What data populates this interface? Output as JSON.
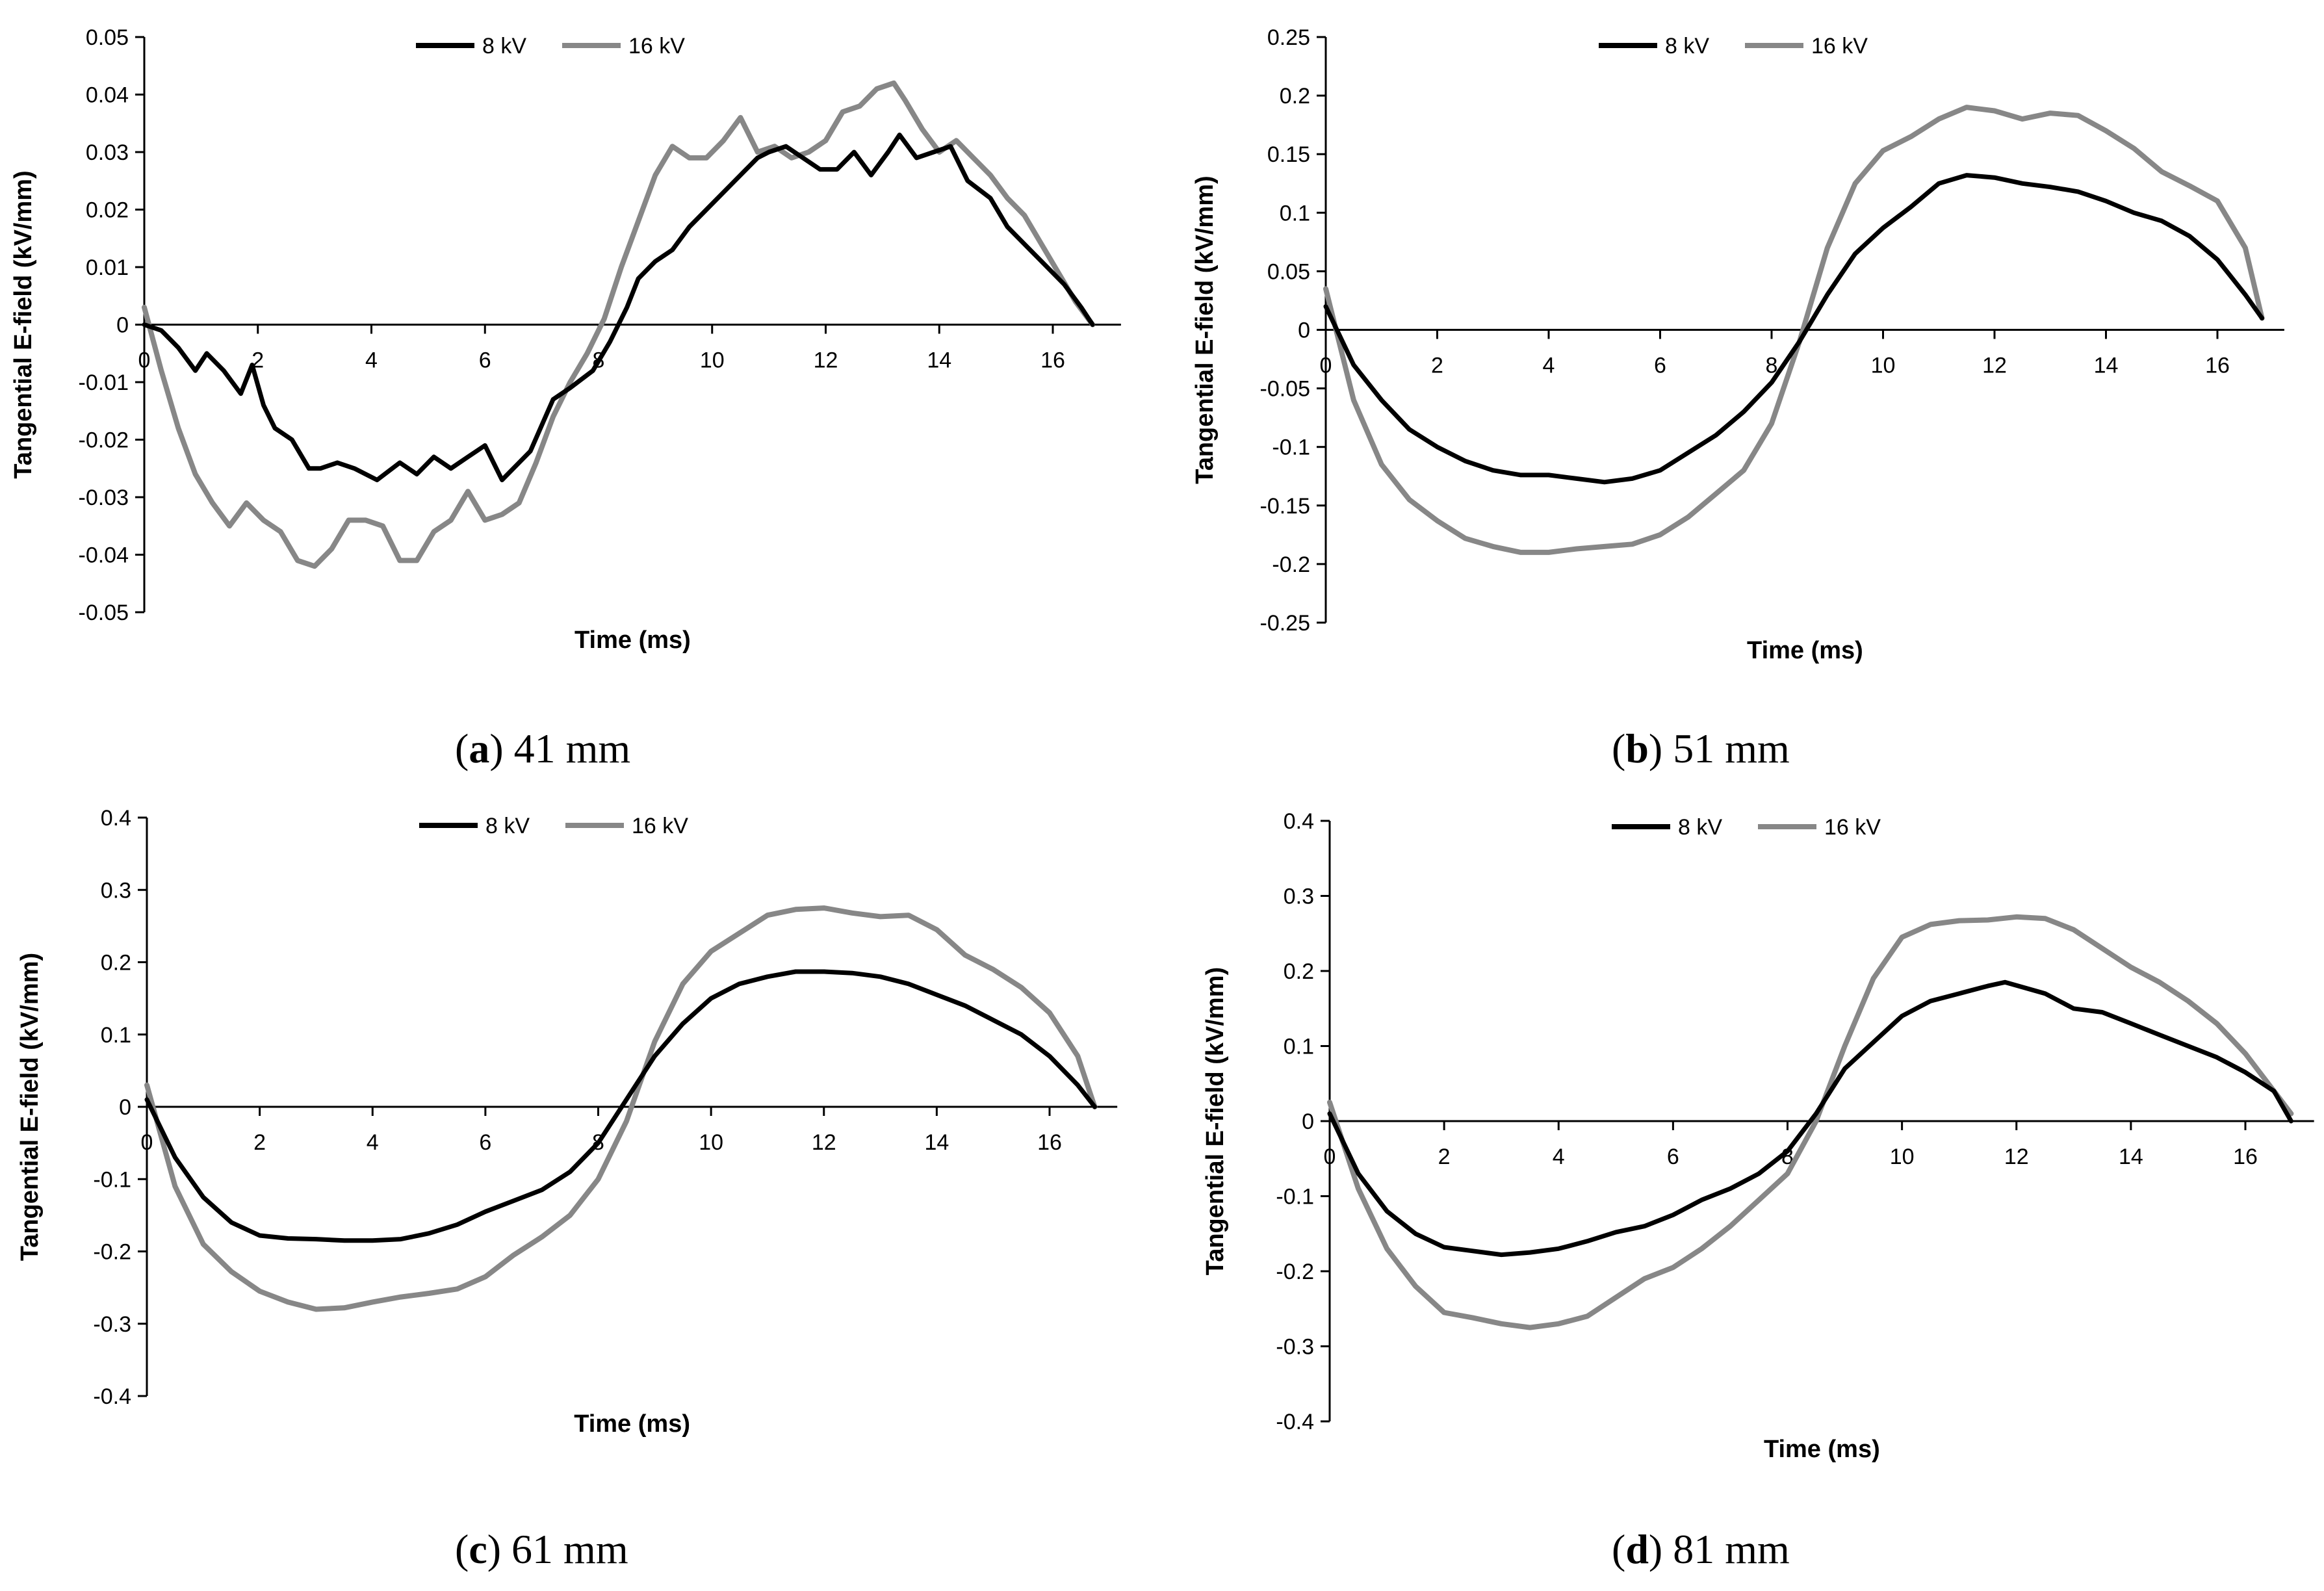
{
  "figure": {
    "colors": {
      "series_8kV": "#000000",
      "series_16kV": "#878787",
      "axis": "#000000"
    }
  },
  "chart_data": [
    {
      "type": "line",
      "caption_letter": "a",
      "caption_text": "41 mm",
      "xlabel": "Time (ms)",
      "ylabel": "Tangential E-field (kV/mm)",
      "xlim": [
        0,
        17.2
      ],
      "ylim": [
        -0.05,
        0.05
      ],
      "x_ticks": [
        0,
        2,
        4,
        6,
        8,
        10,
        12,
        14,
        16
      ],
      "x_tick_labels": [
        "0",
        "2",
        "4",
        "6",
        "8",
        "10",
        "12",
        "14",
        "16"
      ],
      "y_ticks": [
        0.05,
        0.04,
        0.03,
        0.02,
        0.01,
        0,
        -0.01,
        -0.02,
        -0.03,
        -0.04,
        -0.05
      ],
      "y_tick_labels": [
        "0.05",
        "0.04",
        "0.03",
        "0.02",
        "0.01",
        "0",
        "-0.01",
        "-0.02",
        "-0.03",
        "-0.04",
        "-0.05"
      ],
      "legend": [
        "8 kV",
        "16 kV"
      ],
      "series": [
        {
          "name": "8 kV",
          "x": [
            0,
            0.3,
            0.6,
            0.9,
            1.1,
            1.4,
            1.7,
            1.9,
            2.1,
            2.3,
            2.6,
            2.9,
            3.1,
            3.4,
            3.7,
            4.1,
            4.5,
            4.8,
            5.1,
            5.4,
            5.7,
            6.0,
            6.3,
            6.5,
            6.8,
            7.2,
            7.5,
            7.9,
            8.2,
            8.5,
            8.7,
            9.0,
            9.3,
            9.6,
            9.9,
            10.2,
            10.5,
            10.8,
            11.0,
            11.3,
            11.6,
            11.9,
            12.2,
            12.5,
            12.8,
            13.1,
            13.3,
            13.6,
            13.9,
            14.2,
            14.5,
            14.9,
            15.2,
            15.5,
            15.8,
            16.2,
            16.5,
            16.7
          ],
          "y": [
            0,
            -0.001,
            -0.004,
            -0.008,
            -0.005,
            -0.008,
            -0.012,
            -0.007,
            -0.014,
            -0.018,
            -0.02,
            -0.025,
            -0.025,
            -0.024,
            -0.025,
            -0.027,
            -0.024,
            -0.026,
            -0.023,
            -0.025,
            -0.023,
            -0.021,
            -0.027,
            -0.025,
            -0.022,
            -0.013,
            -0.011,
            -0.008,
            -0.003,
            0.003,
            0.008,
            0.011,
            0.013,
            0.017,
            0.02,
            0.023,
            0.026,
            0.029,
            0.03,
            0.031,
            0.029,
            0.027,
            0.027,
            0.03,
            0.026,
            0.03,
            0.033,
            0.029,
            0.03,
            0.031,
            0.025,
            0.022,
            0.017,
            0.014,
            0.011,
            0.007,
            0.003,
            0
          ]
        },
        {
          "name": "16 kV",
          "x": [
            0,
            0.3,
            0.6,
            0.9,
            1.2,
            1.5,
            1.8,
            2.1,
            2.4,
            2.7,
            3.0,
            3.3,
            3.6,
            3.9,
            4.2,
            4.5,
            4.8,
            5.1,
            5.4,
            5.7,
            6.0,
            6.3,
            6.6,
            6.9,
            7.2,
            7.5,
            7.8,
            8.1,
            8.4,
            8.7,
            9.0,
            9.3,
            9.6,
            9.9,
            10.2,
            10.5,
            10.8,
            11.1,
            11.4,
            11.7,
            12.0,
            12.3,
            12.6,
            12.9,
            13.2,
            13.4,
            13.7,
            14.0,
            14.3,
            14.6,
            14.9,
            15.2,
            15.5,
            15.8,
            16.1,
            16.4,
            16.7
          ],
          "y": [
            0.003,
            -0.008,
            -0.018,
            -0.026,
            -0.031,
            -0.035,
            -0.031,
            -0.034,
            -0.036,
            -0.041,
            -0.042,
            -0.039,
            -0.034,
            -0.034,
            -0.035,
            -0.041,
            -0.041,
            -0.036,
            -0.034,
            -0.029,
            -0.034,
            -0.033,
            -0.031,
            -0.024,
            -0.016,
            -0.01,
            -0.005,
            0.001,
            0.01,
            0.018,
            0.026,
            0.031,
            0.029,
            0.029,
            0.032,
            0.036,
            0.03,
            0.031,
            0.029,
            0.03,
            0.032,
            0.037,
            0.038,
            0.041,
            0.042,
            0.039,
            0.034,
            0.03,
            0.032,
            0.029,
            0.026,
            0.022,
            0.019,
            0.014,
            0.009,
            0.004,
            0
          ]
        }
      ]
    },
    {
      "type": "line",
      "caption_letter": "b",
      "caption_text": "51 mm",
      "xlabel": "Time (ms)",
      "ylabel": "Tangential E-field (kV/mm)",
      "xlim": [
        0,
        17.2
      ],
      "ylim": [
        -0.25,
        0.25
      ],
      "x_ticks": [
        0,
        2,
        4,
        6,
        8,
        10,
        12,
        14,
        16
      ],
      "x_tick_labels": [
        "0",
        "2",
        "4",
        "6",
        "8",
        "10",
        "12",
        "14",
        "16"
      ],
      "y_ticks": [
        0.25,
        0.2,
        0.15,
        0.1,
        0.05,
        0,
        -0.05,
        -0.1,
        -0.15,
        -0.2,
        -0.25
      ],
      "y_tick_labels": [
        "0.25",
        "0.2",
        "0.15",
        "0.1",
        "0.05",
        "0",
        "-0.05",
        "-0.1",
        "-0.15",
        "-0.2",
        "-0.25"
      ],
      "legend": [
        "8 kV",
        "16 kV"
      ],
      "series": [
        {
          "name": "8 kV",
          "x": [
            0,
            0.5,
            1.0,
            1.5,
            2.0,
            2.5,
            3.0,
            3.5,
            4.0,
            4.5,
            5.0,
            5.5,
            6.0,
            6.5,
            7.0,
            7.5,
            8.0,
            8.5,
            9.0,
            9.5,
            10.0,
            10.5,
            11.0,
            11.5,
            12.0,
            12.5,
            13.0,
            13.5,
            14.0,
            14.5,
            15.0,
            15.5,
            16.0,
            16.5,
            16.8
          ],
          "y": [
            0.02,
            -0.03,
            -0.06,
            -0.085,
            -0.1,
            -0.112,
            -0.12,
            -0.124,
            -0.124,
            -0.127,
            -0.13,
            -0.127,
            -0.12,
            -0.105,
            -0.09,
            -0.07,
            -0.045,
            -0.01,
            0.03,
            0.065,
            0.087,
            0.105,
            0.125,
            0.132,
            0.13,
            0.125,
            0.122,
            0.118,
            0.11,
            0.1,
            0.093,
            0.08,
            0.06,
            0.03,
            0.01
          ]
        },
        {
          "name": "16 kV",
          "x": [
            0,
            0.5,
            1.0,
            1.5,
            2.0,
            2.5,
            3.0,
            3.5,
            4.0,
            4.5,
            5.0,
            5.5,
            6.0,
            6.5,
            7.0,
            7.5,
            8.0,
            8.5,
            9.0,
            9.5,
            10.0,
            10.5,
            11.0,
            11.5,
            12.0,
            12.5,
            13.0,
            13.5,
            14.0,
            14.5,
            15.0,
            15.5,
            16.0,
            16.5,
            16.8
          ],
          "y": [
            0.035,
            -0.06,
            -0.115,
            -0.145,
            -0.163,
            -0.178,
            -0.185,
            -0.19,
            -0.19,
            -0.187,
            -0.185,
            -0.183,
            -0.175,
            -0.16,
            -0.14,
            -0.12,
            -0.08,
            -0.01,
            0.07,
            0.125,
            0.153,
            0.165,
            0.18,
            0.19,
            0.187,
            0.18,
            0.185,
            0.183,
            0.17,
            0.155,
            0.135,
            0.123,
            0.11,
            0.07,
            0.01
          ]
        }
      ]
    },
    {
      "type": "line",
      "caption_letter": "c",
      "caption_text": "61 mm",
      "xlabel": "Time (ms)",
      "ylabel": "Tangential E-field (kV/mm)",
      "xlim": [
        0,
        17.2
      ],
      "ylim": [
        -0.4,
        0.4
      ],
      "x_ticks": [
        0,
        2,
        4,
        6,
        8,
        10,
        12,
        14,
        16
      ],
      "x_tick_labels": [
        "0",
        "2",
        "4",
        "6",
        "8",
        "10",
        "12",
        "14",
        "16"
      ],
      "y_ticks": [
        0.4,
        0.3,
        0.2,
        0.1,
        0,
        -0.1,
        -0.2,
        -0.3,
        -0.4
      ],
      "y_tick_labels": [
        "0.4",
        "0.3",
        "0.2",
        "0.1",
        "0",
        "-0.1",
        "-0.2",
        "-0.3",
        "-0.4"
      ],
      "legend": [
        "8 kV",
        "16 kV"
      ],
      "series": [
        {
          "name": "8 kV",
          "x": [
            0,
            0.5,
            1.0,
            1.5,
            2.0,
            2.5,
            3.0,
            3.5,
            4.0,
            4.5,
            5.0,
            5.5,
            6.0,
            6.5,
            7.0,
            7.5,
            8.0,
            8.5,
            9.0,
            9.5,
            10.0,
            10.5,
            11.0,
            11.5,
            12.0,
            12.5,
            13.0,
            13.5,
            14.0,
            14.5,
            15.0,
            15.5,
            16.0,
            16.5,
            16.8
          ],
          "y": [
            0.01,
            -0.07,
            -0.125,
            -0.16,
            -0.178,
            -0.182,
            -0.183,
            -0.185,
            -0.185,
            -0.183,
            -0.175,
            -0.163,
            -0.145,
            -0.13,
            -0.115,
            -0.09,
            -0.05,
            0.01,
            0.07,
            0.115,
            0.15,
            0.17,
            0.18,
            0.187,
            0.187,
            0.185,
            0.18,
            0.17,
            0.155,
            0.14,
            0.12,
            0.1,
            0.07,
            0.03,
            0.0
          ]
        },
        {
          "name": "16 kV",
          "x": [
            0,
            0.5,
            1.0,
            1.5,
            2.0,
            2.5,
            3.0,
            3.5,
            4.0,
            4.5,
            5.0,
            5.5,
            6.0,
            6.5,
            7.0,
            7.5,
            8.0,
            8.5,
            9.0,
            9.5,
            10.0,
            10.5,
            11.0,
            11.5,
            12.0,
            12.5,
            13.0,
            13.5,
            14.0,
            14.5,
            15.0,
            15.5,
            16.0,
            16.5,
            16.8
          ],
          "y": [
            0.03,
            -0.11,
            -0.19,
            -0.228,
            -0.255,
            -0.27,
            -0.28,
            -0.278,
            -0.27,
            -0.263,
            -0.258,
            -0.252,
            -0.235,
            -0.205,
            -0.18,
            -0.15,
            -0.1,
            -0.02,
            0.09,
            0.17,
            0.215,
            0.24,
            0.265,
            0.273,
            0.275,
            0.268,
            0.263,
            0.265,
            0.245,
            0.21,
            0.19,
            0.165,
            0.13,
            0.07,
            0.0
          ]
        }
      ]
    },
    {
      "type": "line",
      "caption_letter": "d",
      "caption_text": "81 mm",
      "xlabel": "Time (ms)",
      "ylabel": "Tangential E-field (kV/mm)",
      "xlim": [
        0,
        17.2
      ],
      "ylim": [
        -0.4,
        0.4
      ],
      "x_ticks": [
        0,
        2,
        4,
        6,
        8,
        10,
        12,
        14,
        16
      ],
      "x_tick_labels": [
        "0",
        "2",
        "4",
        "6",
        "8",
        "10",
        "12",
        "14",
        "16"
      ],
      "y_ticks": [
        0.4,
        0.3,
        0.2,
        0.1,
        0,
        -0.1,
        -0.2,
        -0.3,
        -0.4
      ],
      "y_tick_labels": [
        "0.4",
        "0.3",
        "0.2",
        "0.1",
        "0",
        "-0.1",
        "-0.2",
        "-0.3",
        "-0.4"
      ],
      "legend": [
        "8 kV",
        "16 kV"
      ],
      "series": [
        {
          "name": "8 kV",
          "x": [
            0,
            0.5,
            1.0,
            1.5,
            2.0,
            2.5,
            3.0,
            3.5,
            4.0,
            4.5,
            5.0,
            5.5,
            6.0,
            6.5,
            7.0,
            7.5,
            8.0,
            8.5,
            9.0,
            9.5,
            10.0,
            10.5,
            11.0,
            11.5,
            11.8,
            12.5,
            13.0,
            13.5,
            14.0,
            14.5,
            15.0,
            15.5,
            16.0,
            16.5,
            16.8
          ],
          "y": [
            0.01,
            -0.07,
            -0.12,
            -0.15,
            -0.168,
            -0.173,
            -0.178,
            -0.175,
            -0.17,
            -0.16,
            -0.148,
            -0.14,
            -0.125,
            -0.105,
            -0.09,
            -0.07,
            -0.04,
            0.01,
            0.07,
            0.105,
            0.14,
            0.16,
            0.17,
            0.18,
            0.185,
            0.17,
            0.15,
            0.145,
            0.13,
            0.115,
            0.1,
            0.085,
            0.065,
            0.04,
            0.0
          ]
        },
        {
          "name": "16 kV",
          "x": [
            0,
            0.5,
            1.0,
            1.5,
            2.0,
            2.5,
            3.0,
            3.5,
            4.0,
            4.5,
            5.0,
            5.5,
            6.0,
            6.5,
            7.0,
            7.5,
            8.0,
            8.5,
            9.0,
            9.5,
            10.0,
            10.5,
            11.0,
            11.5,
            12.0,
            12.5,
            13.0,
            13.5,
            14.0,
            14.5,
            15.0,
            15.5,
            16.0,
            16.5,
            16.8
          ],
          "y": [
            0.025,
            -0.09,
            -0.17,
            -0.22,
            -0.255,
            -0.262,
            -0.27,
            -0.275,
            -0.27,
            -0.26,
            -0.235,
            -0.21,
            -0.195,
            -0.17,
            -0.14,
            -0.105,
            -0.07,
            0.0,
            0.1,
            0.19,
            0.245,
            0.262,
            0.267,
            0.268,
            0.272,
            0.27,
            0.255,
            0.23,
            0.205,
            0.185,
            0.16,
            0.13,
            0.09,
            0.04,
            0.01
          ]
        }
      ]
    }
  ]
}
